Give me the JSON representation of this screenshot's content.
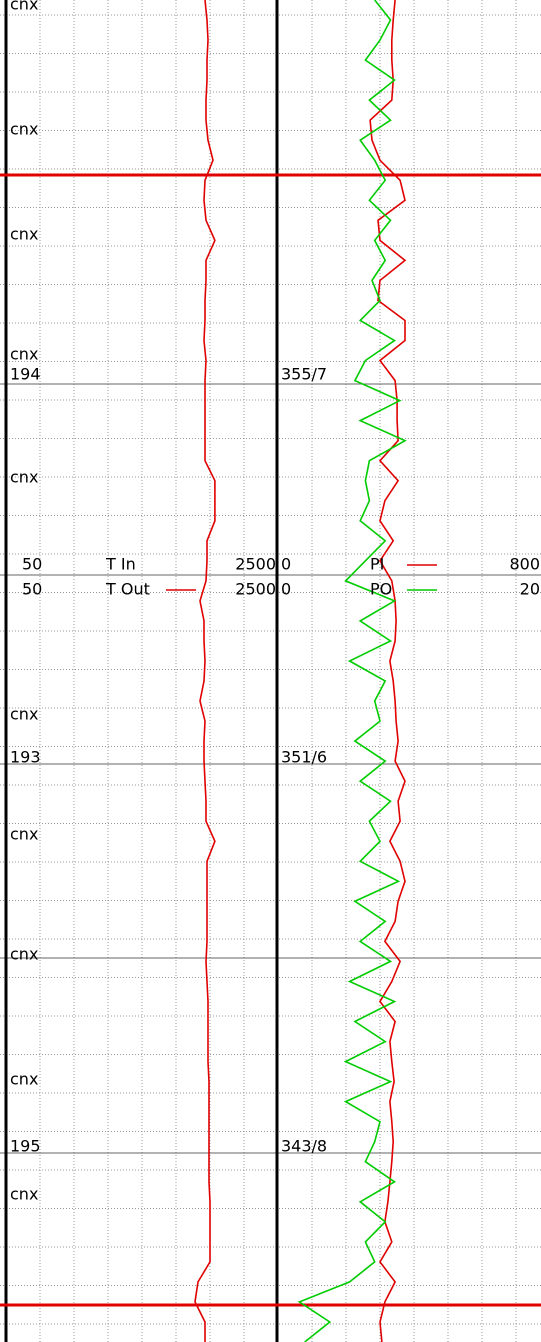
{
  "chart_data": {
    "type": "log",
    "scales": [
      {
        "name": "T In",
        "lim": [
          50,
          2500
        ]
      },
      {
        "name": "T Out",
        "lim": [
          50,
          2500
        ],
        "color": "#e00000",
        "values": [
          1849,
          1867,
          1876,
          1867,
          1867,
          1858,
          1858,
          1876,
          1921,
          1849,
          1840,
          1858,
          1939,
          1858,
          1858,
          1849,
          1849,
          1840,
          1858,
          1849,
          1849,
          1849,
          1849,
          1849,
          1939,
          1939,
          1939,
          1867,
          1867,
          1858,
          1804,
          1840,
          1840,
          1849,
          1840,
          1804,
          1849,
          1840,
          1840,
          1849,
          1858,
          1858,
          1939,
          1867,
          1867,
          1867,
          1867,
          1867,
          1858,
          1867,
          1876,
          1876,
          1876,
          1876,
          1885,
          1885,
          1885,
          1885,
          1885,
          1885,
          1894,
          1894,
          1894,
          1894,
          1786,
          1759,
          1849,
          1849
        ]
      },
      {
        "name": "PI",
        "lim": [
          0,
          800
        ],
        "color": "#e00000",
        "values": [
          358,
          352,
          348,
          348,
          352,
          348,
          282,
          288,
          312,
          373,
          388,
          306,
          312,
          388,
          312,
          306,
          388,
          388,
          312,
          358,
          364,
          364,
          367,
          312,
          367,
          327,
          312,
          352,
          312,
          348,
          358,
          361,
          358,
          342,
          352,
          358,
          361,
          367,
          358,
          388,
          367,
          373,
          342,
          373,
          388,
          367,
          358,
          327,
          373,
          348,
          312,
          358,
          342,
          348,
          355,
          342,
          348,
          352,
          348,
          342,
          336,
          327,
          348,
          312,
          358,
          327,
          312,
          318
        ]
      },
      {
        "name": "PO",
        "lim": [
          0,
          20
        ],
        "color": "#00cc00",
        "values": [
          7.4,
          8.6,
          7.8,
          6.7,
          8.9,
          7.0,
          8.6,
          6.3,
          7.4,
          8.2,
          7.0,
          8.6,
          7.4,
          8.2,
          7.2,
          7.8,
          6.3,
          8.9,
          6.7,
          5.9,
          9.3,
          6.3,
          9.7,
          7.0,
          6.7,
          7.0,
          6.3,
          8.2,
          6.7,
          5.2,
          8.9,
          6.3,
          8.6,
          5.5,
          8.2,
          7.4,
          7.8,
          5.9,
          8.2,
          6.3,
          8.6,
          7.0,
          7.8,
          6.3,
          9.2,
          5.9,
          8.2,
          6.3,
          8.6,
          5.5,
          8.9,
          5.9,
          8.2,
          5.2,
          8.6,
          5.2,
          7.8,
          7.4,
          6.7,
          8.9,
          6.3,
          8.2,
          6.7,
          7.4,
          5.5,
          1.7,
          4.0,
          2.1
        ]
      }
    ],
    "annotations": [
      "cnx",
      "cnx",
      "cnx",
      "cnx",
      "cnx",
      "cnx",
      "cnx",
      "cnx",
      "cnx",
      "cnx"
    ],
    "depths": [
      "194",
      "193",
      "195"
    ],
    "surveys": [
      "355/7",
      "351/6",
      "343/8"
    ]
  }
}
